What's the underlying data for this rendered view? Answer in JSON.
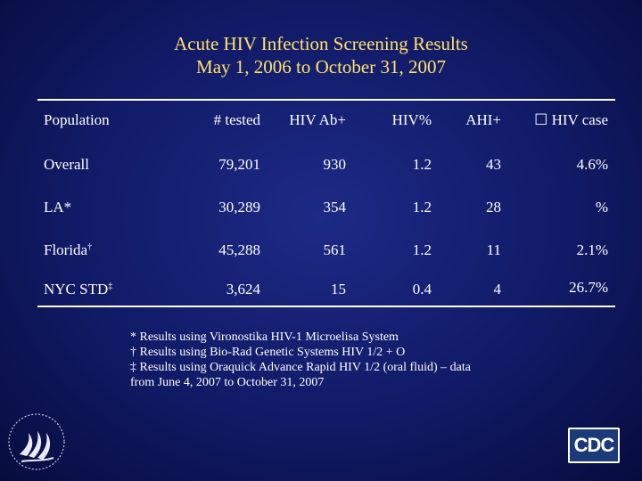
{
  "title": {
    "line1": "Acute HIV Infection Screening Results",
    "line2": "May 1, 2006 to October 31, 2007"
  },
  "table": {
    "headers": [
      "Population",
      "# tested",
      "HIV Ab+",
      "HIV%",
      "AHI+",
      "☐ HIV case"
    ],
    "rows": [
      {
        "population": "Overall",
        "marker": "",
        "tested": "79,201",
        "ab": "930",
        "pct": "1.2",
        "ahi": "43",
        "hivcase": "4.6%"
      },
      {
        "population": "LA*",
        "marker": "",
        "tested": "30,289",
        "ab": "354",
        "pct": "1.2",
        "ahi": "28",
        "hivcase": "%"
      },
      {
        "population": "Florida",
        "marker": "†",
        "tested": "45,288",
        "ab": "561",
        "pct": "1.2",
        "ahi": "11",
        "hivcase": "2.1%"
      },
      {
        "population": "NYC STD",
        "marker": "‡",
        "tested": "3,624",
        "ab": "15",
        "pct": "0.4",
        "ahi": "4",
        "hivcase": "26.7%"
      }
    ]
  },
  "footnotes": [
    "* Results using Vironostika HIV-1 Microelisa System",
    "† Results using Bio-Rad Genetic Systems HIV 1/2 + O",
    "‡ Results using Oraquick Advance Rapid HIV 1/2 (oral fluid) – data",
    "from June 4, 2007 to October 31, 2007"
  ],
  "logos": {
    "hhs": "hhs-eagle-seal",
    "cdc": "CDC"
  },
  "colors": {
    "title": "#ffe26a",
    "background": "#111a66",
    "text": "#ffffff"
  }
}
